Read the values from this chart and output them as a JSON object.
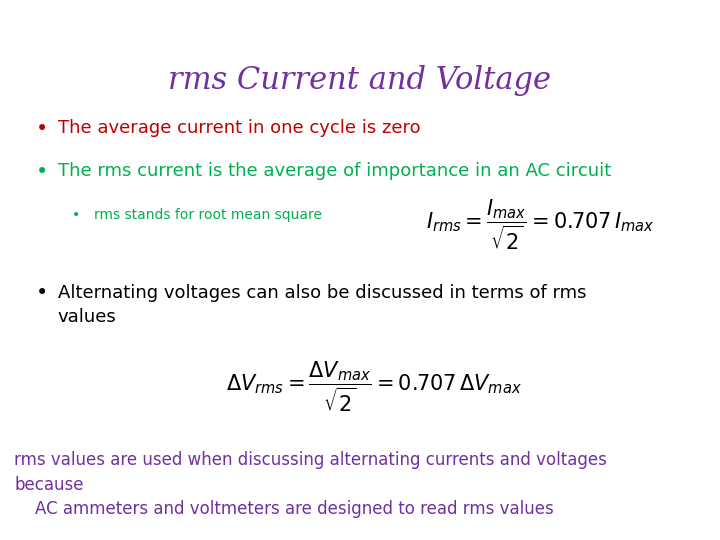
{
  "title": "rms Current and Voltage",
  "title_color": "#7030A0",
  "title_fontsize": 22,
  "background_color": "#ffffff",
  "bullet1_text": "The average current in one cycle is zero",
  "bullet1_color": "#C00000",
  "bullet2_text": "The rms current is the average of importance in an AC circuit",
  "bullet2_color": "#00B050",
  "subbullet_text": "rms stands for root mean square",
  "subbullet_color": "#00B050",
  "formula1": "$I_{rms} = \\dfrac{I_{max}}{\\sqrt{2}} = 0.707\\, I_{max}$",
  "formula1_color": "#000000",
  "bullet3_text": "Alternating voltages can also be discussed in terms of rms\nvalues",
  "bullet3_color": "#000000",
  "formula2": "$\\Delta V_{rms} = \\dfrac{\\Delta V_{max}}{\\sqrt{2}} = 0.707\\, \\Delta V_{max}$",
  "formula2_color": "#000000",
  "footer_line1": "rms values are used when discussing alternating currents and voltages\nbecause",
  "footer_line2": "    AC ammeters and voltmeters are designed to read rms values",
  "footer_color": "#7030A0",
  "bullet_fontsize": 13,
  "subbullet_fontsize": 10,
  "formula_fontsize": 15,
  "footer_fontsize": 12
}
